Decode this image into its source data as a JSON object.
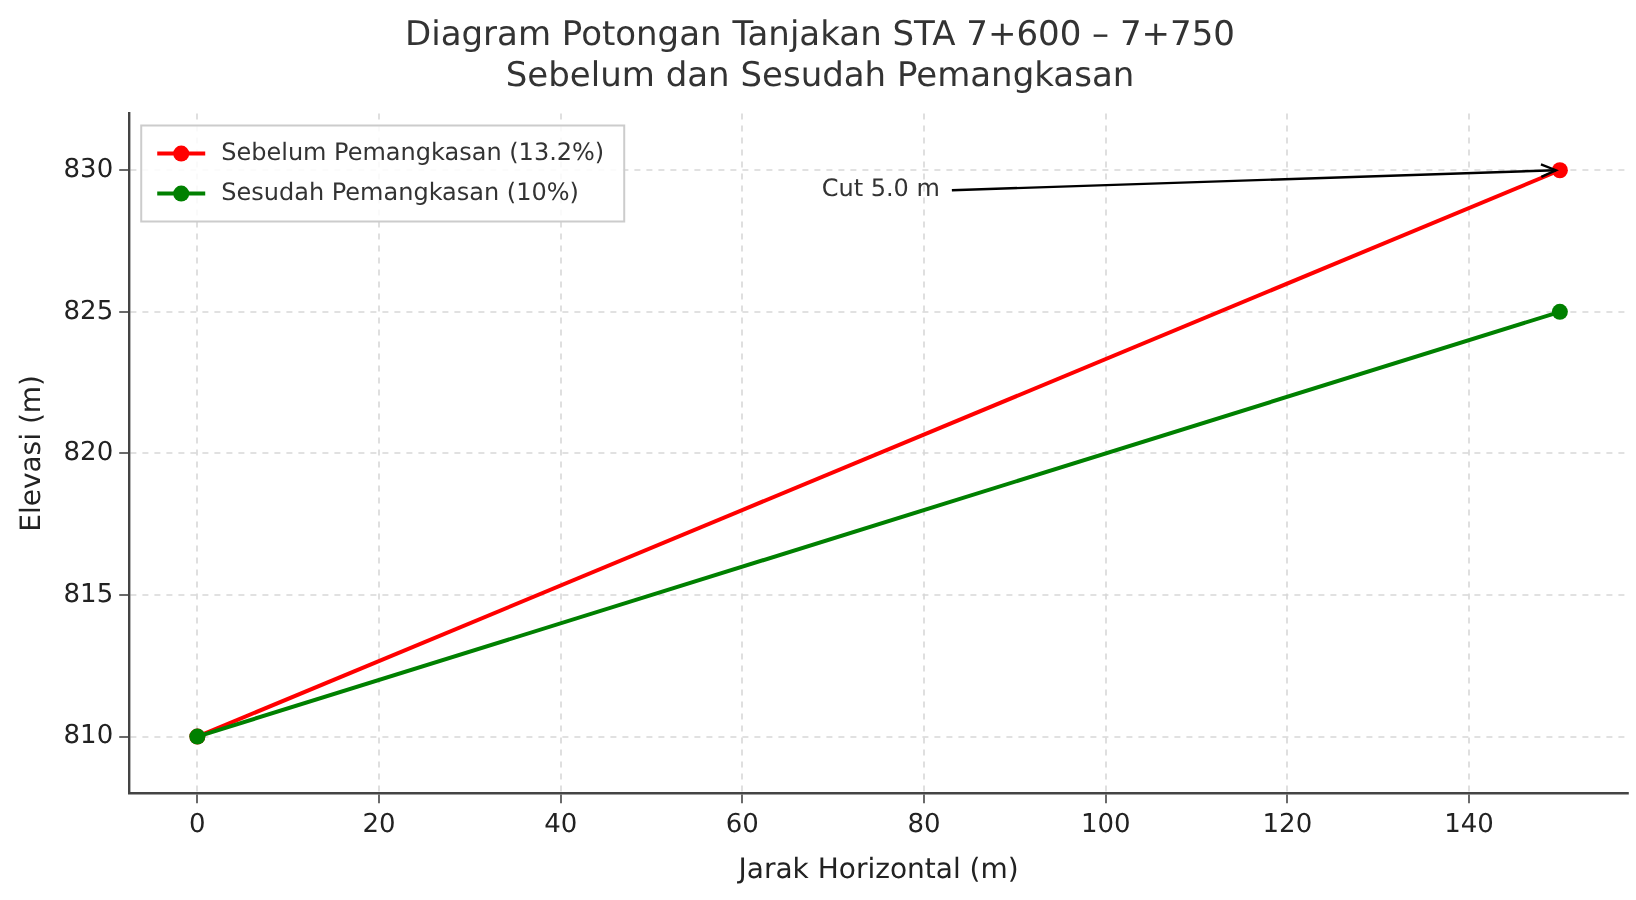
{
  "chart_data": {
    "type": "line",
    "title": "Diagram Potongan Tanjakan STA 7+600 – 7+750\nSebelum dan Sesudah Pemangkasan",
    "xlabel": "Jarak Horizontal (m)",
    "ylabel": "Elevasi (m)",
    "x": [
      0,
      150
    ],
    "series": [
      {
        "name": "Sebelum Pemangkasan (13.2%)",
        "color": "#ff0000",
        "values": [
          810,
          830
        ]
      },
      {
        "name": "Sesudah Pemangkasan (10%)",
        "color": "#008000",
        "values": [
          810,
          825
        ]
      }
    ],
    "xlim": [
      -7.5,
      157.5
    ],
    "xticks": [
      0,
      20,
      40,
      60,
      80,
      100,
      120,
      140
    ],
    "ylim": [
      808,
      832
    ],
    "yticks": [
      810,
      815,
      820,
      825,
      830
    ],
    "annotations": [
      {
        "text": "Cut 5.0 m",
        "x": 150,
        "y": 830
      }
    ],
    "grid": true,
    "legend": "top left",
    "marker": "circle",
    "line_style": "solid"
  }
}
